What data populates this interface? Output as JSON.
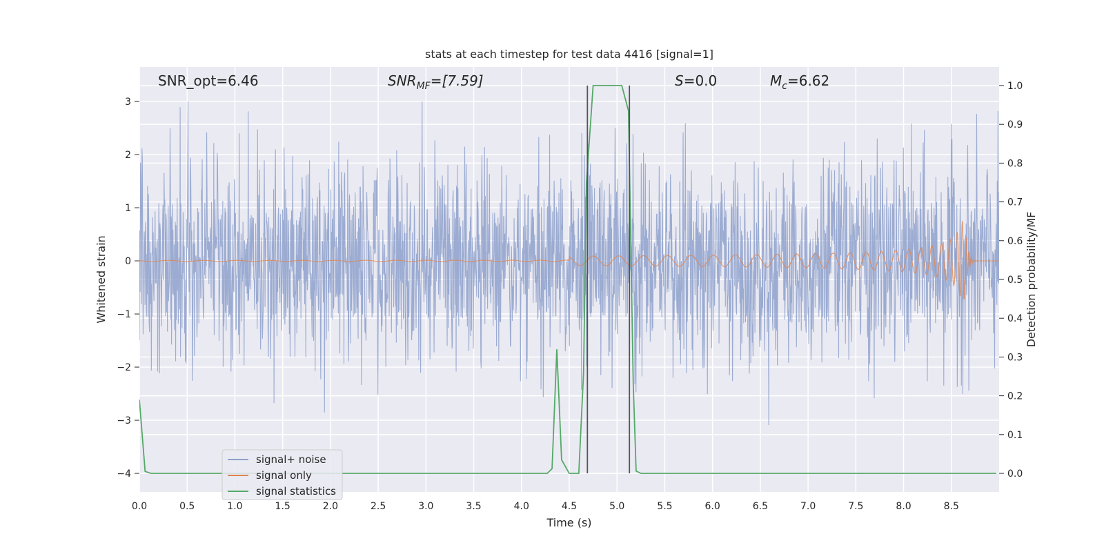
{
  "chart_data": {
    "type": "line",
    "title": "stats at each timestep for test data 4416 [signal=1]",
    "xlabel": "Time (s)",
    "ylabel": "Whitened strain",
    "ylabel_right": "Detection probability/MF",
    "xlim": [
      0.0,
      9.0
    ],
    "ylim_left": [
      -4.35,
      3.65
    ],
    "ylim_right": [
      -0.048,
      1.048
    ],
    "x_ticks": [
      "0.0",
      "0.5",
      "1.0",
      "1.5",
      "2.0",
      "2.5",
      "3.0",
      "3.5",
      "4.0",
      "4.5",
      "5.0",
      "5.5",
      "6.0",
      "6.5",
      "7.0",
      "7.5",
      "8.0",
      "8.5"
    ],
    "y_ticks_left": [
      "−4",
      "−3",
      "−2",
      "−1",
      "0",
      "1",
      "2",
      "3"
    ],
    "y_ticks_right": [
      "0.0",
      "0.1",
      "0.2",
      "0.3",
      "0.4",
      "0.5",
      "0.6",
      "0.7",
      "0.8",
      "0.9",
      "1.0"
    ],
    "grid": true,
    "legend_placement": "lower-left",
    "annotations": {
      "snr_opt": "SNR_opt=6.46",
      "snr_mf_main": "SNR",
      "snr_mf_sub": "MF",
      "snr_mf_value": "=[7.59]",
      "s_var": "S",
      "s_value": "=0.0",
      "mc_main": "M",
      "mc_sub": "c",
      "mc_value": "=6.62"
    },
    "series": [
      {
        "name": "signal+ noise",
        "color": "#8da0cb",
        "axis": "left",
        "kind": "noise",
        "approx_envelope": [
          -3.2,
          3.0
        ]
      },
      {
        "name": "signal only",
        "color": "#dd8452",
        "axis": "left",
        "kind": "chirp",
        "approx_peak_time": 8.65,
        "approx_peak_amplitude": [
          0.6,
          -0.8
        ]
      },
      {
        "name": "signal statistics",
        "color": "#55a868",
        "axis": "right",
        "x": [
          0.0,
          0.06,
          0.12,
          0.2,
          4.27,
          4.32,
          4.37,
          4.42,
          4.5,
          4.6,
          4.65,
          4.68,
          4.75,
          5.05,
          5.12,
          5.17,
          5.2,
          5.25,
          8.97
        ],
        "y": [
          0.19,
          0.005,
          0.0,
          0.0,
          0.0,
          0.012,
          0.32,
          0.035,
          0.0,
          0.0,
          0.26,
          0.75,
          1.0,
          1.0,
          0.935,
          0.23,
          0.006,
          0.0,
          0.0
        ]
      }
    ],
    "vertical_markers": [
      4.69,
      5.13
    ]
  }
}
